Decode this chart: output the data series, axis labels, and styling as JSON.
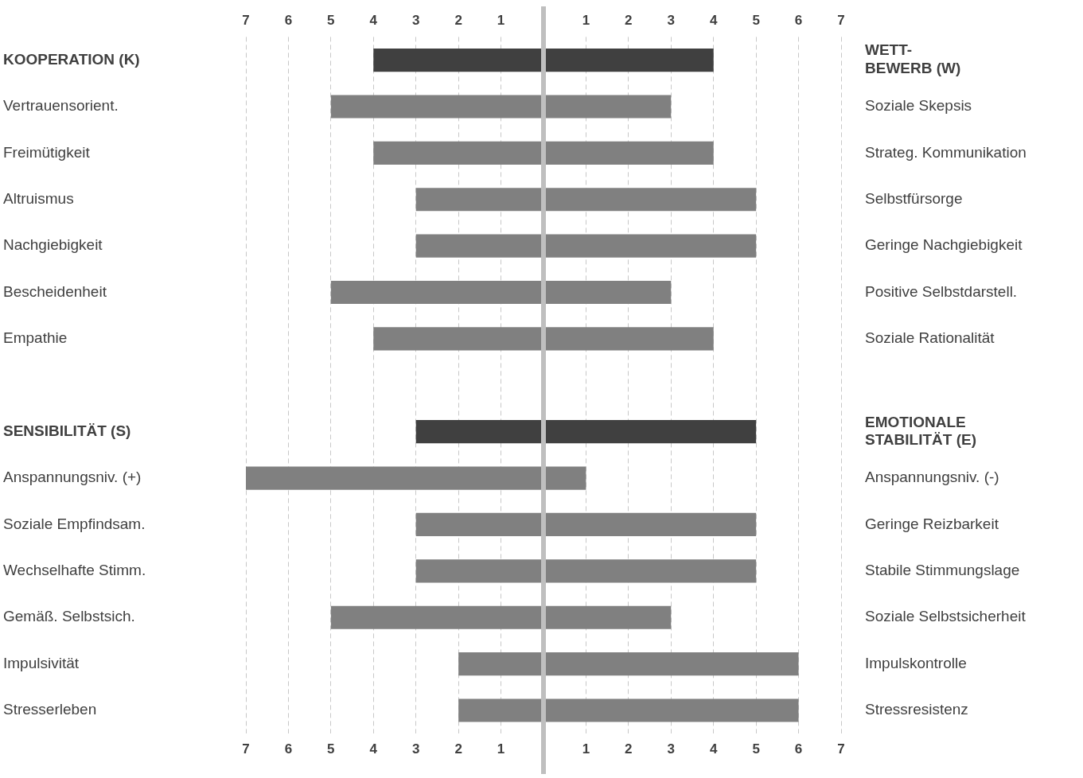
{
  "chart_data": {
    "type": "bar",
    "orientation": "horizontal",
    "categories": [
      "KOOPERATION (K)",
      "Vertrauensorient.",
      "Freimütigkeit",
      "Altruismus",
      "Nachgiebigkeit",
      "Bescheidenheit",
      "Empathie",
      null,
      "SENSIBILITÄT (S)",
      "Anspannungsniv. (+)",
      "Soziale Empfindsam.",
      "Wechselhafte Stimm.",
      "Gemäß. Selbstsich.",
      "Impulsivität",
      "Stresserleben"
    ],
    "y2_categories": [
      "WETT-BEWERB (W)",
      "Soziale Skepsis",
      "Strateg. Kommunikation",
      "Selbstfürsorge",
      "Geringe Nachgiebigkeit",
      "Positive Selbstdarstell.",
      "Soziale Rationalität",
      null,
      "EMOTIONALE STABILITÄT (E)",
      "Anspannungsniv. (-)",
      "Geringe Reizbarkeit",
      "Stabile Stimmungslage",
      "Soziale Selbstsicherheit",
      "Impulskontrolle",
      "Stressresistenz"
    ],
    "series": [
      {
        "colors": [
          "#404040",
          "#808080",
          "#808080",
          "#808080",
          "#808080",
          "#808080",
          "#808080",
          "#808080",
          "#404040",
          "#808080",
          "#808080",
          "#808080",
          "#808080",
          "#808080",
          "#808080"
        ],
        "values": [
          -4,
          -5,
          -4,
          -3,
          -3,
          -5,
          -4,
          null,
          -3,
          -7,
          -3,
          -3,
          -5,
          -2,
          -2
        ]
      },
      {
        "colors": [
          "#404040",
          "#808080",
          "#808080",
          "#808080",
          "#808080",
          "#808080",
          "#808080",
          "#808080",
          "#404040",
          "#808080",
          "#808080",
          "#808080",
          "#808080",
          "#808080",
          "#808080"
        ],
        "values": [
          4,
          3,
          4,
          5,
          5,
          3,
          4,
          null,
          5,
          1,
          5,
          5,
          3,
          6,
          6
        ]
      }
    ],
    "stacked": true,
    "xlim": [
      -7,
      7
    ],
    "xticks": [
      {
        "value": -7,
        "label": "7"
      },
      {
        "value": -6,
        "label": "6"
      },
      {
        "value": -5,
        "label": "5"
      },
      {
        "value": -4,
        "label": "4"
      },
      {
        "value": -3,
        "label": "3"
      },
      {
        "value": -2,
        "label": "2"
      },
      {
        "value": -1,
        "label": "1"
      },
      1,
      2,
      3,
      4,
      5,
      6,
      7
    ],
    "x2lim": [
      -7,
      7
    ],
    "x2ticks": [
      {
        "value": -7,
        "label": "7"
      },
      {
        "value": -6,
        "label": "6"
      },
      {
        "value": -5,
        "label": "5"
      },
      {
        "value": -4,
        "label": "4"
      },
      {
        "value": -3,
        "label": "3"
      },
      {
        "value": -2,
        "label": "2"
      },
      {
        "value": -1,
        "label": "1"
      },
      1,
      2,
      3,
      4,
      5,
      6,
      7
    ],
    "ref_lines": [
      {
        "axis": "x",
        "value": 0,
        "color": "#bfbfbf"
      }
    ],
    "grid": "x",
    "legend": false
  }
}
